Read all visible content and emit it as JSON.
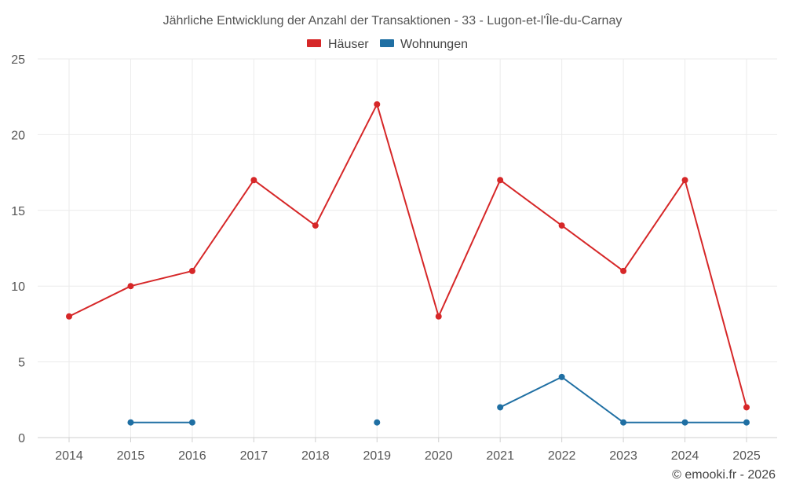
{
  "chart_data": {
    "type": "line",
    "title": "Jährliche Entwicklung der Anzahl der Transaktionen - 33 - Lugon-et-l'Île-du-Carnay",
    "x": [
      "2014",
      "2015",
      "2016",
      "2017",
      "2018",
      "2019",
      "2020",
      "2021",
      "2022",
      "2023",
      "2024",
      "2025"
    ],
    "series": [
      {
        "name": "Häuser",
        "color": "#d62728",
        "values": [
          8,
          10,
          11,
          17,
          14,
          22,
          8,
          17,
          14,
          11,
          17,
          2
        ]
      },
      {
        "name": "Wohnungen",
        "color": "#1f6fa3",
        "values": [
          null,
          1,
          1,
          null,
          null,
          1,
          null,
          2,
          4,
          1,
          1,
          1
        ]
      }
    ],
    "ylim": [
      0,
      25
    ],
    "yticks": [
      0,
      5,
      10,
      15,
      20,
      25
    ],
    "grid": true,
    "legend": "top-center",
    "xlabel": "",
    "ylabel": ""
  },
  "credit": "© emooki.fr - 2026"
}
